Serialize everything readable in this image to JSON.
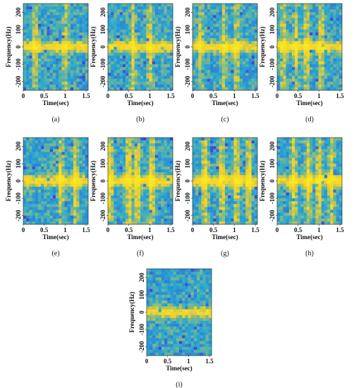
{
  "chart_data": [
    {
      "type": "heatmap",
      "caption": "(a)",
      "xlabel": "Time(sec)",
      "ylabel": "Frequency(Hz)",
      "xticks": [
        "0",
        "0.5",
        "1",
        "1.5"
      ],
      "yticks": [
        "200",
        "100",
        "0",
        "-100",
        "-200"
      ],
      "xlim": [
        0,
        1.55
      ],
      "ylim": [
        -250,
        250
      ],
      "bands": [
        0.28,
        1.0
      ],
      "horizontal_band_hz": 0,
      "intensity": 0.55
    },
    {
      "type": "heatmap",
      "caption": "(b)",
      "xlabel": "Time(sec)",
      "ylabel": "Frequency(Hz)",
      "xticks": [
        "0",
        "0.5",
        "1",
        "1.5"
      ],
      "yticks": [
        "200",
        "100",
        "0",
        "-100",
        "-200"
      ],
      "xlim": [
        0,
        1.55
      ],
      "ylim": [
        -250,
        250
      ],
      "bands": [
        0.6,
        1.0
      ],
      "horizontal_band_hz": 0,
      "intensity": 0.6
    },
    {
      "type": "heatmap",
      "caption": "(c)",
      "xlabel": "Time(sec)",
      "ylabel": "Frequency(Hz)",
      "xticks": [
        "0",
        "0.5",
        "1",
        "1.5"
      ],
      "yticks": [
        "200",
        "100",
        "0",
        "-100",
        "-200"
      ],
      "xlim": [
        0,
        1.55
      ],
      "ylim": [
        -250,
        250
      ],
      "bands": [
        0.2,
        0.75,
        1.05
      ],
      "horizontal_band_hz": 0,
      "intensity": 0.55
    },
    {
      "type": "heatmap",
      "caption": "(d)",
      "xlabel": "Time(sec)",
      "ylabel": "Frequency(Hz)",
      "xticks": [
        "0",
        "0.5",
        "1",
        "1.5"
      ],
      "yticks": [
        "200",
        "100",
        "0",
        "-100",
        "-200"
      ],
      "xlim": [
        0,
        1.55
      ],
      "ylim": [
        -250,
        250
      ],
      "bands": [
        0.15,
        0.45,
        0.7,
        1.05
      ],
      "horizontal_band_hz": 0,
      "intensity": 0.6
    },
    {
      "type": "heatmap",
      "caption": "(e)",
      "xlabel": "Time(sec)",
      "ylabel": "Frequency(Hz)",
      "xticks": [
        "0",
        "0.5",
        "1",
        "1.5"
      ],
      "yticks": [
        "200",
        "100",
        "0",
        "-100",
        "-200"
      ],
      "xlim": [
        0,
        1.55
      ],
      "ylim": [
        -250,
        250
      ],
      "bands": [
        0.9,
        1.25
      ],
      "horizontal_band_hz": 0,
      "intensity": 0.65
    },
    {
      "type": "heatmap",
      "caption": "(f)",
      "xlabel": "Time(sec)",
      "ylabel": "Frequency(Hz)",
      "xticks": [
        "0",
        "0.5",
        "1",
        "1.5"
      ],
      "yticks": [
        "200",
        "100",
        "0",
        "-100",
        "-200"
      ],
      "xlim": [
        0,
        1.55
      ],
      "ylim": [
        -250,
        250
      ],
      "bands": [
        0.05,
        0.5,
        0.7,
        1.05
      ],
      "horizontal_band_hz": 0,
      "intensity": 0.75
    },
    {
      "type": "heatmap",
      "caption": "(g)",
      "xlabel": "Time(sec)",
      "ylabel": "Frequency(Hz)",
      "xticks": [
        "0",
        "0.5",
        "1",
        "1.5"
      ],
      "yticks": [
        "200",
        "100",
        "0",
        "-100",
        "-200"
      ],
      "xlim": [
        0,
        1.55
      ],
      "ylim": [
        -250,
        250
      ],
      "bands": [
        0.3,
        0.7,
        1.05,
        1.35
      ],
      "horizontal_band_hz": 0,
      "intensity": 0.75
    },
    {
      "type": "heatmap",
      "caption": "(h)",
      "xlabel": "Time(sec)",
      "ylabel": "Frequency(Hz)",
      "xticks": [
        "0",
        "0.5",
        "1",
        "1.5"
      ],
      "yticks": [
        "200",
        "100",
        "0",
        "-100",
        "-200"
      ],
      "xlim": [
        0,
        1.55
      ],
      "ylim": [
        -250,
        250
      ],
      "bands": [
        0.4,
        0.75,
        1.0,
        1.3
      ],
      "horizontal_band_hz": 0,
      "intensity": 0.7
    },
    {
      "type": "heatmap",
      "caption": "(i)",
      "xlabel": "Time(sec)",
      "ylabel": "Frequency(Hz)",
      "xticks": [
        "0",
        "0.5",
        "1",
        "1.5"
      ],
      "yticks": [
        "200",
        "100",
        "0",
        "-100",
        "-200"
      ],
      "xlim": [
        0,
        1.55
      ],
      "ylim": [
        -250,
        250
      ],
      "bands": [],
      "horizontal_band_hz": 0,
      "intensity": 0.5
    }
  ],
  "colors": {
    "low": "#3e48d8",
    "mid": "#27a8d2",
    "high": "#f2d02a",
    "peak": "#f9e91e"
  }
}
